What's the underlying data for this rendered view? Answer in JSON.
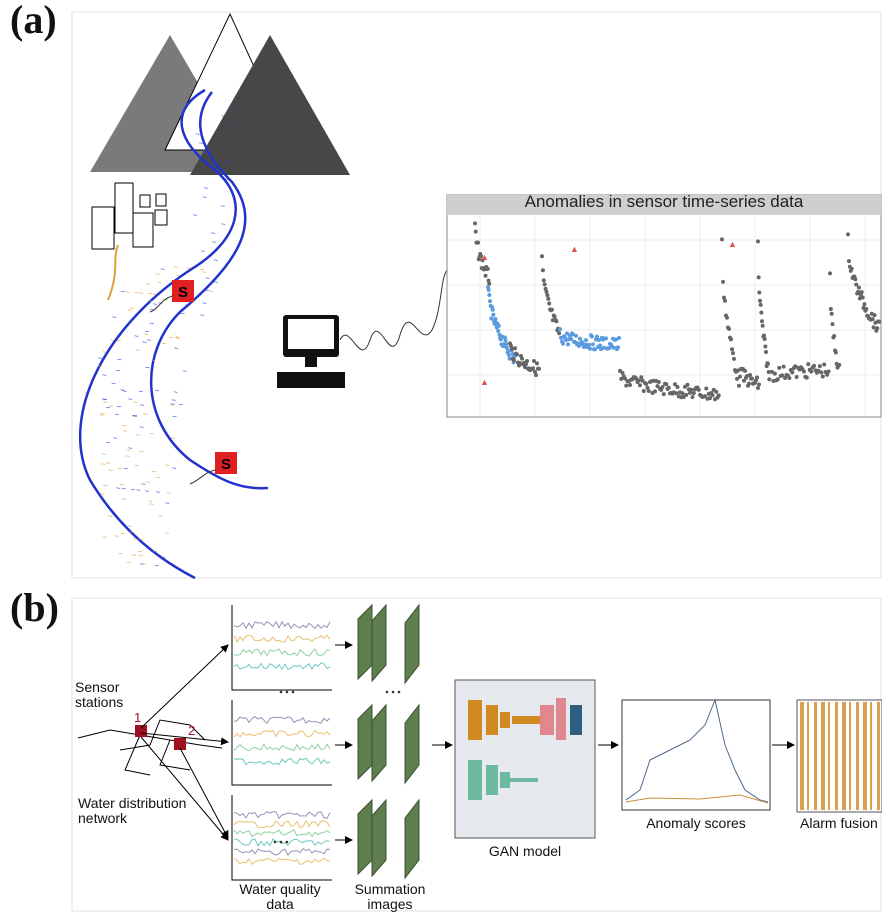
{
  "panel_a": {
    "label": "(a)",
    "plot_title": "Anomalies in sensor time-series data",
    "sensor_labels": [
      "S",
      "S"
    ]
  },
  "panel_b": {
    "label": "(b)",
    "sensor_stations": "Sensor stations",
    "station_ids": [
      "1",
      "2"
    ],
    "network": "Water distribution network",
    "water_quality_data": "Water quality data",
    "summation_images": "Summation images",
    "gan_model": "GAN model",
    "anomaly_scores": "Anomaly scores",
    "alarm_fusion": "Alarm fusion"
  }
}
